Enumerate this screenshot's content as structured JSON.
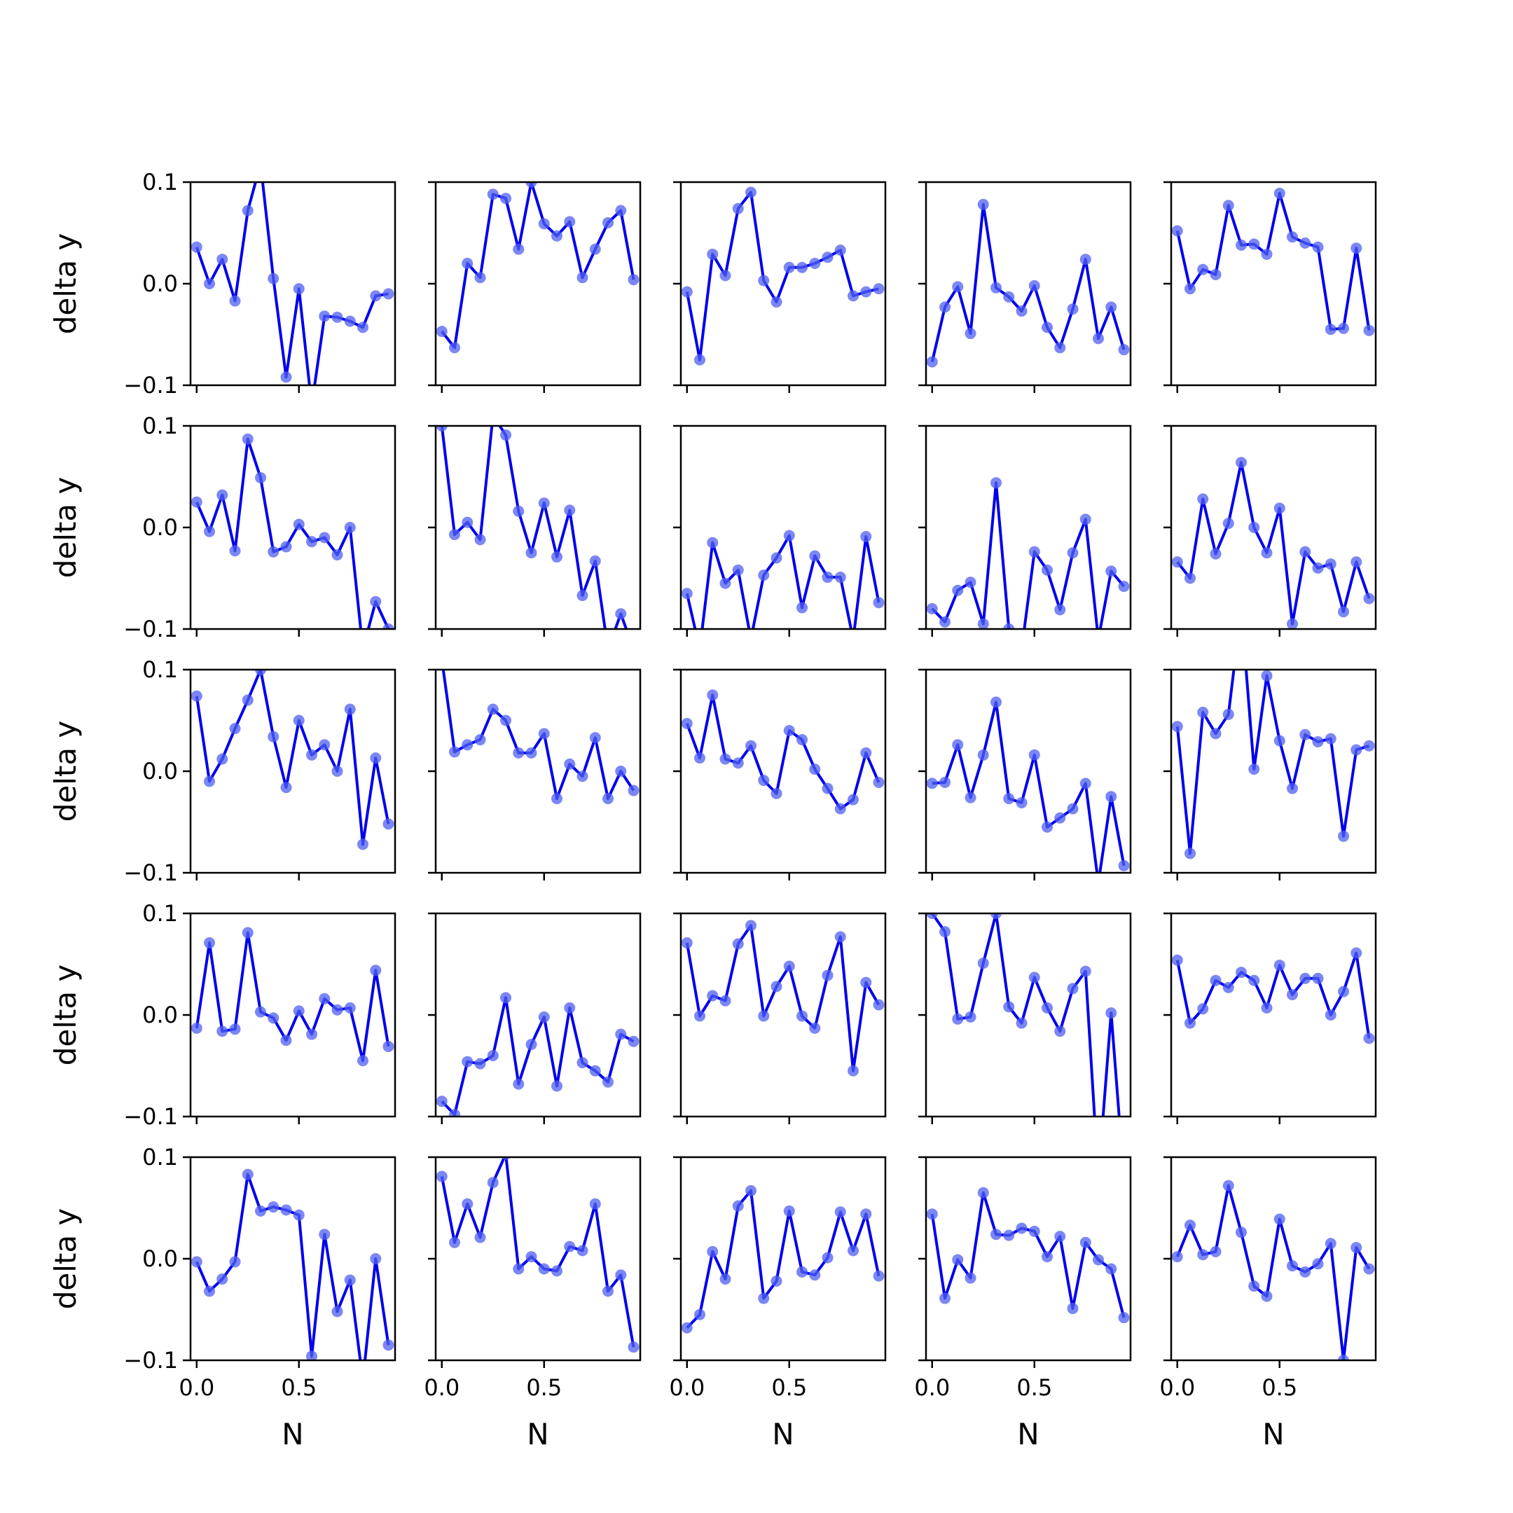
{
  "chart_data": {
    "type": "line",
    "layout": "5x5 small multiples, shared x and y axes",
    "xlabel": "N",
    "ylabel": "delta y",
    "xlim": [
      -0.03,
      0.97
    ],
    "ylim": [
      -0.1,
      0.1
    ],
    "x_ticks": [
      0.0,
      0.5
    ],
    "x_tick_labels": [
      "0.0",
      "0.5"
    ],
    "y_ticks": [
      -0.1,
      0.0,
      0.1
    ],
    "y_tick_labels": [
      "−0.1",
      "0.0",
      "0.1"
    ],
    "line_color": "#0000ee",
    "marker_color": "#4f5ff0",
    "x": [
      0.0,
      0.0625,
      0.125,
      0.1875,
      0.25,
      0.3125,
      0.375,
      0.4375,
      0.5,
      0.5625,
      0.625,
      0.6875,
      0.75,
      0.8125,
      0.875,
      0.9375
    ],
    "series": [
      {
        "row": 0,
        "col": 0,
        "values": [
          0.036,
          0.0,
          0.024,
          -0.017,
          0.072,
          0.118,
          0.005,
          -0.092,
          -0.005,
          -0.12,
          -0.032,
          -0.033,
          -0.037,
          -0.043,
          -0.012,
          -0.01
        ]
      },
      {
        "row": 0,
        "col": 1,
        "values": [
          -0.047,
          -0.063,
          0.02,
          0.006,
          0.088,
          0.084,
          0.034,
          0.1,
          0.059,
          0.047,
          0.061,
          0.006,
          0.034,
          0.06,
          0.072,
          0.004
        ]
      },
      {
        "row": 0,
        "col": 2,
        "values": [
          -0.008,
          -0.075,
          0.029,
          0.008,
          0.074,
          0.09,
          0.003,
          -0.018,
          0.016,
          0.016,
          0.02,
          0.026,
          0.033,
          -0.012,
          -0.008,
          -0.005
        ]
      },
      {
        "row": 0,
        "col": 3,
        "values": [
          -0.077,
          -0.023,
          -0.003,
          -0.049,
          0.078,
          -0.004,
          -0.013,
          -0.027,
          -0.002,
          -0.043,
          -0.063,
          -0.025,
          0.024,
          -0.054,
          -0.023,
          -0.065
        ]
      },
      {
        "row": 0,
        "col": 4,
        "values": [
          0.052,
          -0.005,
          0.014,
          0.009,
          0.077,
          0.038,
          0.039,
          0.029,
          0.089,
          0.046,
          0.04,
          0.036,
          -0.045,
          -0.044,
          0.035,
          -0.046
        ]
      },
      {
        "row": 1,
        "col": 0,
        "values": [
          0.025,
          -0.004,
          0.032,
          -0.023,
          0.087,
          0.049,
          -0.024,
          -0.019,
          0.003,
          -0.014,
          -0.01,
          -0.027,
          0.0,
          -0.12,
          -0.073,
          -0.1
        ]
      },
      {
        "row": 1,
        "col": 1,
        "values": [
          0.1,
          -0.007,
          0.005,
          -0.012,
          0.11,
          0.091,
          0.016,
          -0.025,
          0.024,
          -0.029,
          0.017,
          -0.067,
          -0.033,
          -0.12,
          -0.085,
          -0.12
        ]
      },
      {
        "row": 1,
        "col": 2,
        "values": [
          -0.065,
          -0.12,
          -0.015,
          -0.055,
          -0.042,
          -0.11,
          -0.047,
          -0.03,
          -0.008,
          -0.079,
          -0.028,
          -0.049,
          -0.049,
          -0.11,
          -0.009,
          -0.074
        ]
      },
      {
        "row": 1,
        "col": 3,
        "values": [
          -0.08,
          -0.093,
          -0.062,
          -0.054,
          -0.095,
          0.044,
          -0.1,
          -0.12,
          -0.024,
          -0.042,
          -0.081,
          -0.025,
          0.008,
          -0.11,
          -0.043,
          -0.058
        ]
      },
      {
        "row": 1,
        "col": 4,
        "values": [
          -0.034,
          -0.05,
          0.028,
          -0.026,
          0.004,
          0.064,
          0.0,
          -0.025,
          0.019,
          -0.095,
          -0.024,
          -0.04,
          -0.036,
          -0.083,
          -0.034,
          -0.07
        ]
      },
      {
        "row": 2,
        "col": 0,
        "values": [
          0.074,
          -0.01,
          0.012,
          0.042,
          0.07,
          0.1,
          0.034,
          -0.016,
          0.05,
          0.016,
          0.026,
          0.0,
          0.061,
          -0.072,
          0.013,
          -0.052
        ]
      },
      {
        "row": 2,
        "col": 1,
        "values": [
          0.11,
          0.019,
          0.026,
          0.031,
          0.061,
          0.05,
          0.018,
          0.018,
          0.037,
          -0.027,
          0.007,
          -0.005,
          0.033,
          -0.027,
          0.0,
          -0.019
        ]
      },
      {
        "row": 2,
        "col": 2,
        "values": [
          0.047,
          0.013,
          0.075,
          0.012,
          0.008,
          0.025,
          -0.009,
          -0.022,
          0.04,
          0.031,
          0.002,
          -0.017,
          -0.037,
          -0.028,
          0.018,
          -0.011
        ]
      },
      {
        "row": 2,
        "col": 3,
        "values": [
          -0.012,
          -0.011,
          0.026,
          -0.026,
          0.016,
          0.068,
          -0.027,
          -0.031,
          0.016,
          -0.055,
          -0.046,
          -0.037,
          -0.012,
          -0.11,
          -0.025,
          -0.093
        ]
      },
      {
        "row": 2,
        "col": 4,
        "values": [
          0.044,
          -0.081,
          0.058,
          0.037,
          0.056,
          0.16,
          0.002,
          0.094,
          0.03,
          -0.017,
          0.036,
          0.029,
          0.032,
          -0.064,
          0.021,
          0.025
        ]
      },
      {
        "row": 3,
        "col": 0,
        "values": [
          -0.013,
          0.071,
          -0.016,
          -0.014,
          0.081,
          0.003,
          -0.003,
          -0.025,
          0.004,
          -0.019,
          0.016,
          0.005,
          0.007,
          -0.045,
          0.044,
          -0.031
        ]
      },
      {
        "row": 3,
        "col": 1,
        "values": [
          -0.085,
          -0.098,
          -0.046,
          -0.048,
          -0.04,
          0.017,
          -0.068,
          -0.029,
          -0.002,
          -0.07,
          0.007,
          -0.047,
          -0.055,
          -0.066,
          -0.019,
          -0.026
        ]
      },
      {
        "row": 3,
        "col": 2,
        "values": [
          0.071,
          -0.001,
          0.019,
          0.014,
          0.07,
          0.088,
          -0.001,
          0.028,
          0.048,
          -0.001,
          -0.013,
          0.039,
          0.077,
          -0.055,
          0.032,
          0.01
        ]
      },
      {
        "row": 3,
        "col": 3,
        "values": [
          0.1,
          0.082,
          -0.004,
          -0.002,
          0.051,
          0.1,
          0.008,
          -0.008,
          0.037,
          0.007,
          -0.016,
          0.026,
          0.043,
          -0.16,
          0.002,
          -0.16
        ]
      },
      {
        "row": 3,
        "col": 4,
        "values": [
          0.054,
          -0.008,
          0.006,
          0.034,
          0.027,
          0.042,
          0.034,
          0.007,
          0.049,
          0.02,
          0.036,
          0.036,
          0.0,
          0.023,
          0.061,
          -0.023
        ]
      },
      {
        "row": 4,
        "col": 0,
        "values": [
          -0.003,
          -0.032,
          -0.02,
          -0.003,
          0.083,
          0.047,
          0.051,
          0.048,
          0.043,
          -0.096,
          0.024,
          -0.052,
          -0.021,
          -0.12,
          0.0,
          -0.085
        ]
      },
      {
        "row": 4,
        "col": 1,
        "values": [
          0.081,
          0.016,
          0.054,
          0.021,
          0.075,
          0.103,
          -0.01,
          0.002,
          -0.01,
          -0.012,
          0.012,
          0.008,
          0.054,
          -0.032,
          -0.016,
          -0.087
        ]
      },
      {
        "row": 4,
        "col": 2,
        "values": [
          -0.068,
          -0.055,
          0.007,
          -0.02,
          0.052,
          0.067,
          -0.039,
          -0.022,
          0.047,
          -0.013,
          -0.016,
          0.001,
          0.046,
          0.008,
          0.044,
          -0.017
        ]
      },
      {
        "row": 4,
        "col": 3,
        "values": [
          0.044,
          -0.039,
          -0.001,
          -0.019,
          0.065,
          0.024,
          0.023,
          0.03,
          0.027,
          0.002,
          0.022,
          -0.049,
          0.016,
          -0.001,
          -0.01,
          -0.058
        ]
      },
      {
        "row": 4,
        "col": 4,
        "values": [
          0.002,
          0.033,
          0.004,
          0.007,
          0.072,
          0.026,
          -0.027,
          -0.037,
          0.039,
          -0.007,
          -0.013,
          -0.005,
          0.015,
          -0.1,
          0.011,
          -0.01
        ]
      }
    ]
  }
}
